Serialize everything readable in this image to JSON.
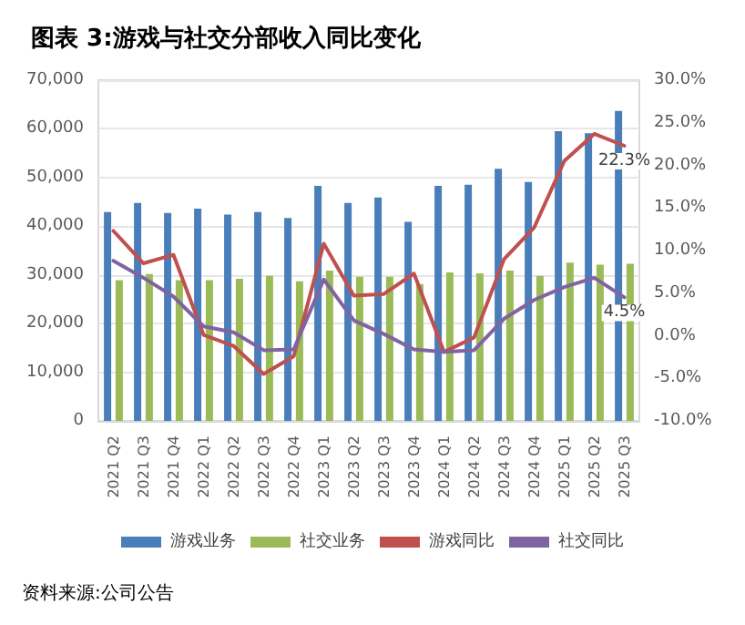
{
  "chart_data": {
    "type": "bar",
    "title": "图表 3:游戏与社交分部收入同比变化",
    "annotations": [
      "资料来源:公司公告"
    ],
    "categories": [
      "2021 Q2",
      "2021 Q3",
      "2021 Q4",
      "2022 Q1",
      "2022 Q2",
      "2022 Q3",
      "2022 Q4",
      "2023 Q1",
      "2023 Q2",
      "2023 Q3",
      "2023 Q4",
      "2024 Q1",
      "2024 Q2",
      "2024 Q3",
      "2024 Q4",
      "2025 Q1",
      "2025 Q2",
      "2025 Q3"
    ],
    "series": [
      {
        "name": "游戏业务",
        "color": "#4a7ebb",
        "values": [
          42900,
          44800,
          42700,
          43600,
          42400,
          42900,
          41700,
          48300,
          44800,
          45900,
          40900,
          48300,
          48500,
          51800,
          49100,
          59500,
          59100,
          63700
        ]
      },
      {
        "name": "社交业务",
        "color": "#9bbb59",
        "values": [
          28900,
          30200,
          28900,
          28900,
          29200,
          29800,
          28700,
          30900,
          29600,
          29600,
          28100,
          30500,
          30300,
          30900,
          29800,
          32500,
          32100,
          32300
        ]
      },
      {
        "name": "游戏同比",
        "type": "line",
        "axis": "y2",
        "color": "#c0504d",
        "values": [
          12.3,
          8.5,
          9.5,
          0.1,
          -1.2,
          -4.5,
          -2.4,
          10.8,
          4.7,
          4.9,
          7.3,
          -1.9,
          -0.2,
          9.0,
          12.7,
          20.5,
          23.7,
          22.3
        ],
        "value_labels": [
          null,
          null,
          null,
          null,
          null,
          null,
          null,
          null,
          null,
          null,
          null,
          null,
          null,
          null,
          null,
          null,
          null,
          "22.3%"
        ]
      },
      {
        "name": "社交同比",
        "type": "line",
        "axis": "y2",
        "color": "#8064a2",
        "values": [
          8.8,
          6.8,
          4.6,
          1.1,
          0.4,
          -1.7,
          -1.6,
          6.6,
          1.8,
          0.2,
          -1.6,
          -1.9,
          -1.7,
          2.0,
          4.2,
          5.7,
          6.8,
          4.5
        ],
        "value_labels": [
          null,
          null,
          null,
          null,
          null,
          null,
          null,
          null,
          null,
          null,
          null,
          null,
          null,
          null,
          null,
          null,
          null,
          "4.5%"
        ]
      }
    ],
    "ylim": [
      0,
      70000
    ],
    "yticks": [
      {
        "value": 0,
        "label": "0"
      },
      {
        "value": 10000,
        "label": "10,000"
      },
      {
        "value": 20000,
        "label": "20,000"
      },
      {
        "value": 30000,
        "label": "30,000"
      },
      {
        "value": 40000,
        "label": "40,000"
      },
      {
        "value": 50000,
        "label": "50,000"
      },
      {
        "value": 60000,
        "label": "60,000"
      },
      {
        "value": 70000,
        "label": "70,000"
      }
    ],
    "y2lim": [
      -10,
      30
    ],
    "y2ticks": [
      {
        "value": -10,
        "label": "-10.0%"
      },
      {
        "value": -5,
        "label": "-5.0%"
      },
      {
        "value": 0,
        "label": "0.0%"
      },
      {
        "value": 5,
        "label": "5.0%"
      },
      {
        "value": 10,
        "label": "10.0%"
      },
      {
        "value": 15,
        "label": "15.0%"
      },
      {
        "value": 20,
        "label": "20.0%"
      },
      {
        "value": 25,
        "label": "25.0%"
      },
      {
        "value": 30,
        "label": "30.0%"
      }
    ],
    "grid": "y",
    "legend": "bottom",
    "marker": "none",
    "line_style": "solid"
  }
}
